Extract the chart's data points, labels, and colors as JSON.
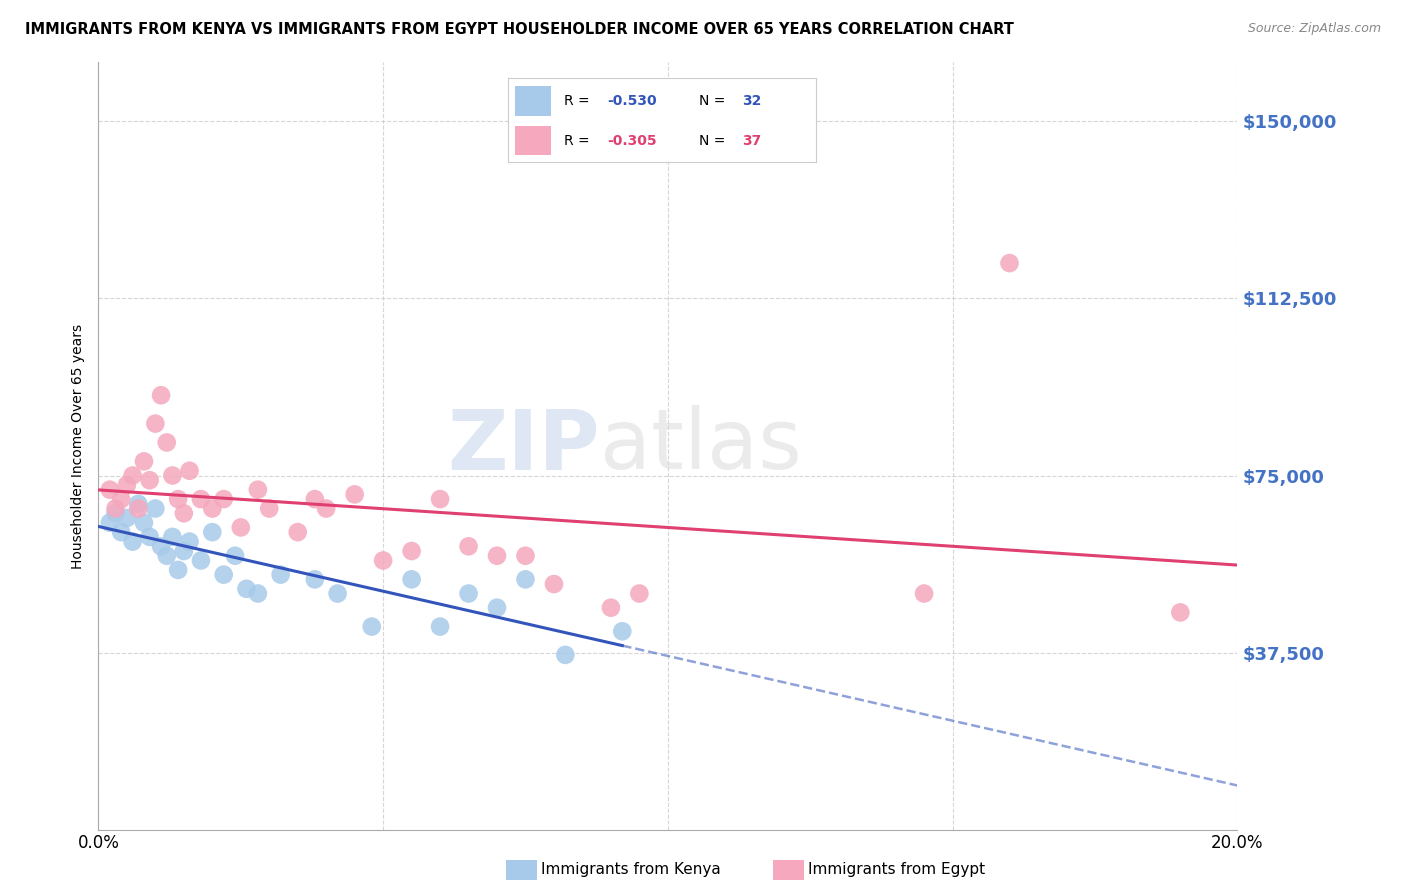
{
  "title": "IMMIGRANTS FROM KENYA VS IMMIGRANTS FROM EGYPT HOUSEHOLDER INCOME OVER 65 YEARS CORRELATION CHART",
  "source": "Source: ZipAtlas.com",
  "ylabel": "Householder Income Over 65 years",
  "xlim": [
    0.0,
    0.2
  ],
  "ylim": [
    0,
    162500
  ],
  "yticks": [
    37500,
    75000,
    112500,
    150000
  ],
  "ytick_labels": [
    "$37,500",
    "$75,000",
    "$112,500",
    "$150,000"
  ],
  "kenya_color": "#A8CAEA",
  "egypt_color": "#F5A8BE",
  "kenya_line_color": "#3355BB",
  "egypt_line_color": "#E04070",
  "kenya_R": -0.53,
  "kenya_N": 32,
  "egypt_R": -0.305,
  "egypt_N": 37,
  "watermark_zip": "ZIP",
  "watermark_atlas": "atlas",
  "background_color": "#FFFFFF",
  "grid_color": "#CCCCCC",
  "kenya_x": [
    0.002,
    0.003,
    0.004,
    0.005,
    0.006,
    0.007,
    0.008,
    0.009,
    0.01,
    0.011,
    0.012,
    0.013,
    0.014,
    0.015,
    0.016,
    0.018,
    0.02,
    0.022,
    0.024,
    0.026,
    0.028,
    0.032,
    0.038,
    0.042,
    0.048,
    0.055,
    0.06,
    0.065,
    0.07,
    0.075,
    0.082,
    0.092
  ],
  "kenya_y": [
    65000,
    67000,
    63000,
    66000,
    61000,
    69000,
    65000,
    62000,
    68000,
    60000,
    58000,
    62000,
    55000,
    59000,
    61000,
    57000,
    63000,
    54000,
    58000,
    51000,
    50000,
    54000,
    53000,
    50000,
    43000,
    53000,
    43000,
    50000,
    47000,
    53000,
    37000,
    42000
  ],
  "egypt_x": [
    0.002,
    0.003,
    0.004,
    0.005,
    0.006,
    0.007,
    0.008,
    0.009,
    0.01,
    0.011,
    0.012,
    0.013,
    0.014,
    0.015,
    0.016,
    0.018,
    0.02,
    0.022,
    0.025,
    0.028,
    0.03,
    0.035,
    0.038,
    0.04,
    0.045,
    0.05,
    0.055,
    0.06,
    0.065,
    0.07,
    0.075,
    0.08,
    0.09,
    0.095,
    0.145,
    0.16,
    0.19
  ],
  "egypt_y": [
    72000,
    68000,
    70000,
    73000,
    75000,
    68000,
    78000,
    74000,
    86000,
    92000,
    82000,
    75000,
    70000,
    67000,
    76000,
    70000,
    68000,
    70000,
    64000,
    72000,
    68000,
    63000,
    70000,
    68000,
    71000,
    57000,
    59000,
    70000,
    60000,
    58000,
    58000,
    52000,
    47000,
    50000,
    50000,
    120000,
    46000
  ]
}
